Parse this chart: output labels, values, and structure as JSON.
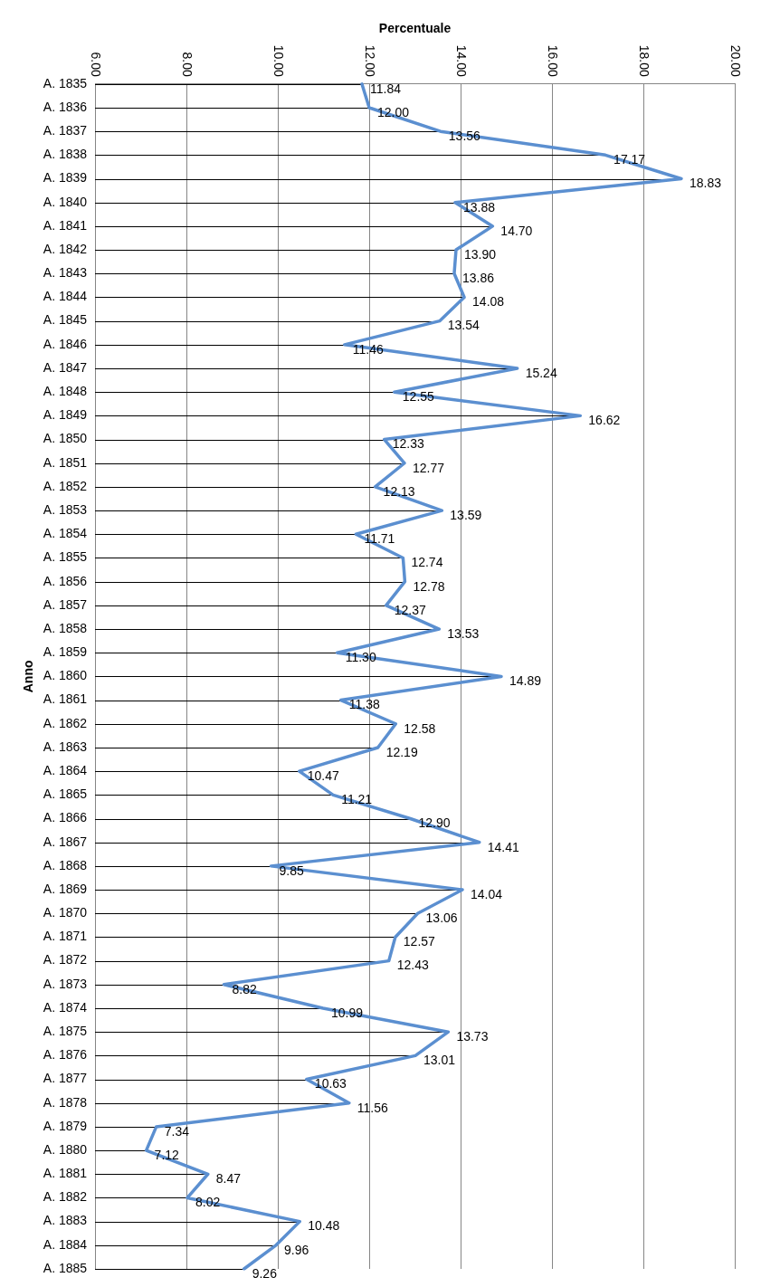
{
  "chart_data": {
    "type": "line",
    "orientation": "horizontal",
    "xlabel": "Percentuale",
    "ylabel": "Anno",
    "categories": [
      "A. 1835",
      "A. 1836",
      "A. 1837",
      "A. 1838",
      "A. 1839",
      "A. 1840",
      "A. 1841",
      "A. 1842",
      "A. 1843",
      "A. 1844",
      "A. 1845",
      "A. 1846",
      "A. 1847",
      "A. 1848",
      "A. 1849",
      "A. 1850",
      "A. 1851",
      "A. 1852",
      "A. 1853",
      "A. 1854",
      "A. 1855",
      "A. 1856",
      "A. 1857",
      "A. 1858",
      "A. 1859",
      "A. 1860",
      "A. 1861",
      "A. 1862",
      "A. 1863",
      "A. 1864",
      "A. 1865",
      "A. 1866",
      "A. 1867",
      "A. 1868",
      "A. 1869",
      "A. 1870",
      "A. 1871",
      "A. 1872",
      "A. 1873",
      "A. 1874",
      "A. 1875",
      "A. 1876",
      "A. 1877",
      "A. 1878",
      "A. 1879",
      "A. 1880",
      "A. 1881",
      "A. 1882",
      "A. 1883",
      "A. 1884",
      "A. 1885"
    ],
    "values": [
      11.84,
      12.0,
      13.56,
      17.17,
      18.83,
      13.88,
      14.7,
      13.9,
      13.86,
      14.08,
      13.54,
      11.46,
      15.24,
      12.55,
      16.62,
      12.33,
      12.77,
      12.13,
      13.59,
      11.71,
      12.74,
      12.78,
      12.37,
      13.53,
      11.3,
      14.89,
      11.38,
      12.58,
      12.19,
      10.47,
      11.21,
      12.9,
      14.41,
      9.85,
      14.04,
      13.06,
      12.57,
      12.43,
      8.82,
      10.99,
      13.73,
      13.01,
      10.63,
      11.56,
      7.34,
      7.12,
      8.47,
      8.02,
      10.48,
      9.96,
      9.26
    ],
    "value_labels": [
      "11.84",
      "12.00",
      "13.56",
      "17.17",
      "18.83",
      "13.88",
      "14.70",
      "13.90",
      "13.86",
      "14.08",
      "13.54",
      "11.46",
      "15.24",
      "12.55",
      "16.62",
      "12.33",
      "12.77",
      "12.13",
      "13.59",
      "11.71",
      "12.74",
      "12.78",
      "12.37",
      "13.53",
      "11.30",
      "14.89",
      "11.38",
      "12.58",
      "12.19",
      "10.47",
      "11.21",
      "12.90",
      "14.41",
      "9.85",
      "14.04",
      "13.06",
      "12.57",
      "12.43",
      "8.82",
      "10.99",
      "13.73",
      "13.01",
      "10.63",
      "11.56",
      "7.34",
      "7.12",
      "8.47",
      "8.02",
      "10.48",
      "9.96",
      "9.26"
    ],
    "color": "#5b8fd0",
    "marker": "none",
    "line_style": "solid",
    "xlim": [
      6,
      20
    ],
    "xticks": [
      {
        "value": 6,
        "label": "6.00"
      },
      {
        "value": 8,
        "label": "8.00"
      },
      {
        "value": 10,
        "label": "10.00"
      },
      {
        "value": 12,
        "label": "12.00"
      },
      {
        "value": 14,
        "label": "14.00"
      },
      {
        "value": 16,
        "label": "16.00"
      },
      {
        "value": 18,
        "label": "18.00"
      },
      {
        "value": 20,
        "label": "20.00"
      }
    ],
    "grid": "x",
    "legend": false
  }
}
